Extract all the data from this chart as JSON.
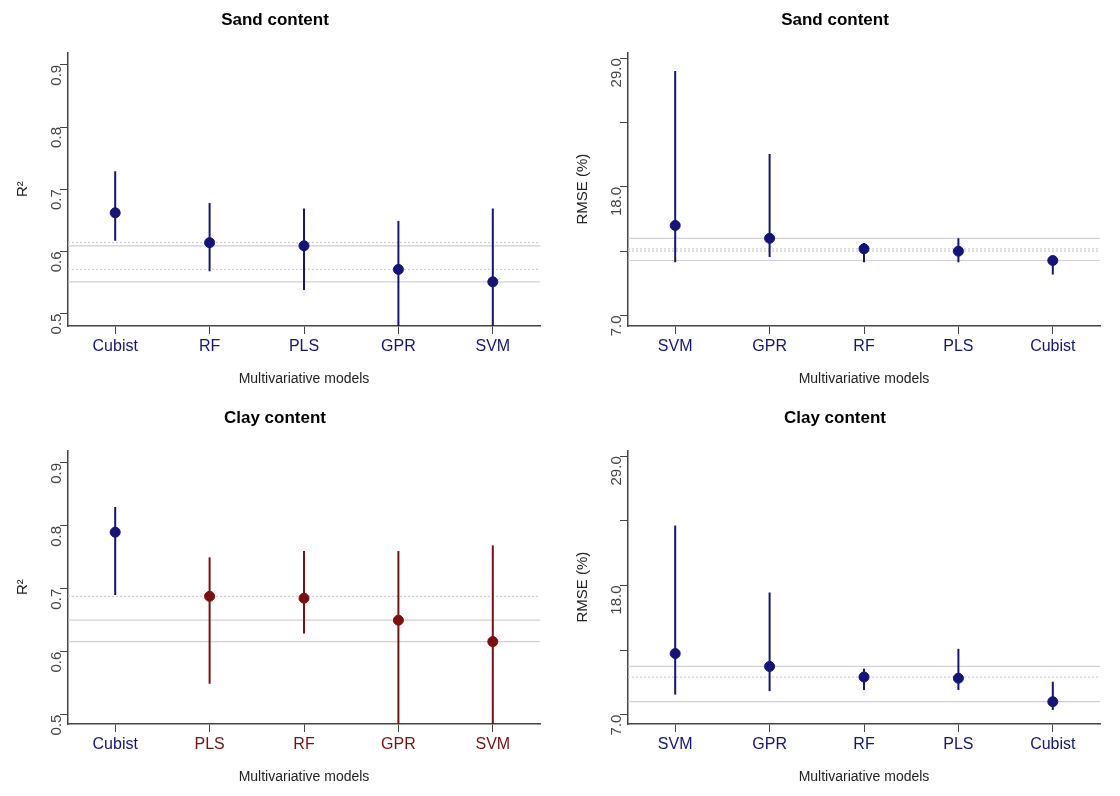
{
  "chart_data": [
    {
      "type": "scatter",
      "title": "Sand content",
      "xlabel": "Multivariative models",
      "ylabel": "R²",
      "marker": "circle",
      "legend": false,
      "grid": false,
      "categories": [
        "Cubist",
        "RF",
        "PLS",
        "GPR",
        "SVM"
      ],
      "values": [
        0.662,
        0.614,
        0.609,
        0.571,
        0.551
      ],
      "errors": [
        [
          0.617,
          0.729
        ],
        [
          0.568,
          0.678
        ],
        [
          0.538,
          0.669
        ],
        [
          0.48,
          0.649
        ],
        [
          0.48,
          0.669
        ]
      ],
      "colors": [
        "#14147a",
        "#14147a",
        "#14147a",
        "#14147a",
        "#14147a"
      ],
      "ylim": [
        0.48,
        0.92
      ],
      "yticks": [
        0.5,
        0.6,
        0.7,
        0.8,
        0.9
      ],
      "ref_lines": [
        {
          "axis": "y",
          "value": 0.614,
          "color": "#d0d0d0",
          "line_style": "dotted"
        },
        {
          "axis": "y",
          "value": 0.609,
          "color": "#d0d0d0",
          "line_style": "solid"
        },
        {
          "axis": "y",
          "value": 0.571,
          "color": "#d0d0d0",
          "line_style": "dotted"
        },
        {
          "axis": "y",
          "value": 0.551,
          "color": "#d0d0d0",
          "line_style": "solid"
        }
      ]
    },
    {
      "type": "scatter",
      "title": "Sand content",
      "xlabel": "Multivariative models",
      "ylabel": "RMSE (%)",
      "marker": "circle",
      "legend": false,
      "grid": false,
      "categories": [
        "SVM",
        "GPR",
        "RF",
        "PLS",
        "Cubist"
      ],
      "values": [
        14.7,
        13.6,
        12.7,
        12.5,
        11.7
      ],
      "errors": [
        [
          11.55,
          27.9
        ],
        [
          12.0,
          20.8
        ],
        [
          11.55,
          13.2
        ],
        [
          11.55,
          13.6
        ],
        [
          10.5,
          12.1
        ]
      ],
      "colors": [
        "#14147a",
        "#14147a",
        "#14147a",
        "#14147a",
        "#14147a"
      ],
      "ylim": [
        6.1,
        29.5
      ],
      "yticks": [
        {
          "value": 7,
          "label": "7.0"
        },
        {
          "value": 12.5,
          "label": null
        },
        {
          "value": 18,
          "label": "18.0"
        },
        {
          "value": 23.5,
          "label": null
        },
        {
          "value": 29,
          "label": "29.0"
        }
      ],
      "ref_lines": [
        {
          "axis": "y",
          "value": 13.6,
          "color": "#d0d0d0",
          "line_style": "solid"
        },
        {
          "axis": "y",
          "value": 12.7,
          "color": "#d0d0d0",
          "line_style": "dotted"
        },
        {
          "axis": "y",
          "value": 12.5,
          "color": "#d0d0d0",
          "line_style": "dotted"
        },
        {
          "axis": "y",
          "value": 11.7,
          "color": "#d0d0d0",
          "line_style": "solid"
        }
      ]
    },
    {
      "type": "scatter",
      "title": "Clay content",
      "xlabel": "Multivariative models",
      "ylabel": "R²",
      "marker": "circle",
      "legend": false,
      "grid": false,
      "categories": [
        "Cubist",
        "PLS",
        "RF",
        "GPR",
        "SVM"
      ],
      "values": [
        0.79,
        0.688,
        0.685,
        0.65,
        0.616
      ],
      "errors": [
        [
          0.69,
          0.83
        ],
        [
          0.549,
          0.75
        ],
        [
          0.629,
          0.76
        ],
        [
          0.485,
          0.76
        ],
        [
          0.485,
          0.769
        ]
      ],
      "colors": [
        "#14147a",
        "#7a1010",
        "#7a1010",
        "#7a1010",
        "#7a1010"
      ],
      "ylim": [
        0.485,
        0.92
      ],
      "yticks": [
        0.5,
        0.6,
        0.7,
        0.8,
        0.9
      ],
      "ref_lines": [
        {
          "axis": "y",
          "value": 0.688,
          "color": "#d0d0d0",
          "line_style": "dotted"
        },
        {
          "axis": "y",
          "value": 0.65,
          "color": "#d0d0d0",
          "line_style": "solid"
        },
        {
          "axis": "y",
          "value": 0.616,
          "color": "#d0d0d0",
          "line_style": "solid"
        }
      ]
    },
    {
      "type": "scatter",
      "title": "Clay content",
      "xlabel": "Multivariative models",
      "ylabel": "RMSE (%)",
      "marker": "circle",
      "legend": false,
      "grid": false,
      "categories": [
        "SVM",
        "GPR",
        "RF",
        "PLS",
        "Cubist"
      ],
      "values": [
        12.2,
        11.1,
        10.2,
        10.1,
        8.1
      ],
      "errors": [
        [
          8.7,
          23.1
        ],
        [
          9.0,
          17.4
        ],
        [
          9.1,
          10.9
        ],
        [
          9.1,
          12.6
        ],
        [
          7.4,
          9.8
        ]
      ],
      "colors": [
        "#14147a",
        "#14147a",
        "#14147a",
        "#14147a",
        "#14147a"
      ],
      "ylim": [
        6.2,
        29.5
      ],
      "yticks": [
        {
          "value": 7,
          "label": "7.0"
        },
        {
          "value": 12.5,
          "label": null
        },
        {
          "value": 18,
          "label": "18.0"
        },
        {
          "value": 23.5,
          "label": null
        },
        {
          "value": 29,
          "label": "29.0"
        }
      ],
      "ref_lines": [
        {
          "axis": "y",
          "value": 11.1,
          "color": "#d0d0d0",
          "line_style": "solid"
        },
        {
          "axis": "y",
          "value": 10.2,
          "color": "#d0d0d0",
          "line_style": "dotted"
        },
        {
          "axis": "y",
          "value": 8.1,
          "color": "#d0d0d0",
          "line_style": "solid"
        }
      ]
    }
  ]
}
